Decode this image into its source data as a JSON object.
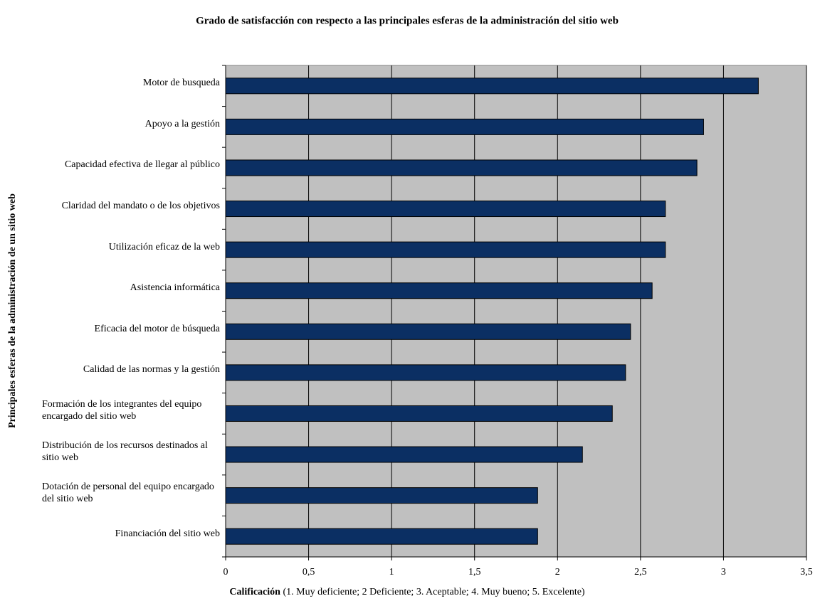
{
  "chart_data": {
    "type": "bar",
    "orientation": "horizontal",
    "title": "Grado de satisfacción con respecto a las principales esferas de la administración del sitio web",
    "xlabel": {
      "bold": "Calificación",
      "text": " (1. Muy deficiente; 2 Deficiente; 3. Aceptable; 4. Muy bueno; 5. Excelente)"
    },
    "ylabel": "Principales esferas de la administración de un sitio web",
    "categories": [
      "Motor de busqueda",
      "Apoyo a la gestión",
      "Capacidad efectiva de llegar al público",
      "Claridad del mandato o de los objetivos",
      "Utilización eficaz de la web",
      "Asistencia informática",
      "Eficacia del motor de búsqueda",
      "Calidad de las normas y la gestión",
      "Formación de los integrantes del equipo encargado del sitio web",
      "Distribución de los recursos destinados al sitio web",
      "Dotación de personal del equipo encargado del sitio web",
      "Financiación del sitio web"
    ],
    "values": [
      3.21,
      2.88,
      2.84,
      2.65,
      2.65,
      2.57,
      2.44,
      2.41,
      2.33,
      2.15,
      1.88,
      1.88
    ],
    "color": "#0b2f63",
    "plot_background": "#c0c0c0",
    "xlim": [
      0,
      3.5
    ],
    "xticks": [
      0,
      {
        "value": 0.5,
        "label": "0,5"
      },
      1,
      {
        "value": 1.5,
        "label": "1,5"
      },
      2,
      {
        "value": 2.5,
        "label": "2,5"
      },
      3,
      {
        "value": 3.5,
        "label": "3,5"
      }
    ],
    "grid": true
  }
}
